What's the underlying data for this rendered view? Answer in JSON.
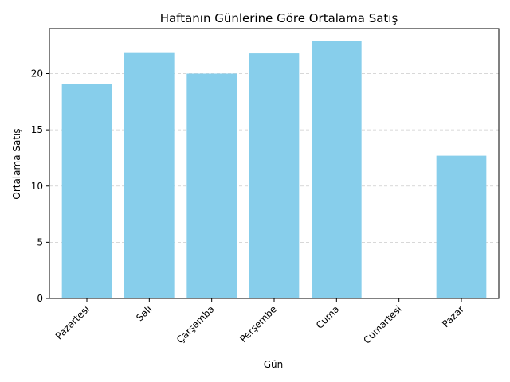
{
  "chart_data": {
    "type": "bar",
    "title": "Haftanın Günlerine Göre Ortalama Satış",
    "xlabel": "Gün",
    "ylabel": "Ortalama Satış",
    "categories": [
      "Pazartesi",
      "Salı",
      "Çarşamba",
      "Perşembe",
      "Cuma",
      "Cumartesi",
      "Pazar"
    ],
    "values": [
      19.1,
      21.9,
      20.0,
      21.8,
      22.9,
      0,
      12.7
    ],
    "ylim": [
      0,
      24
    ],
    "yticks": [
      0,
      5,
      10,
      15,
      20
    ],
    "bar_color": "#87CEEB",
    "grid": "y-dashed",
    "x_tick_rotation": 45
  }
}
